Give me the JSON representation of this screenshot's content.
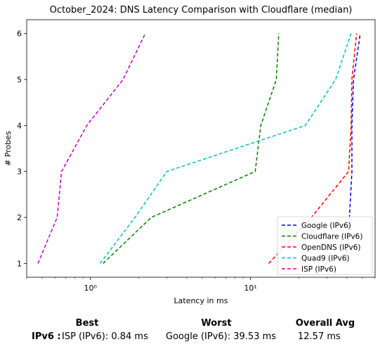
{
  "chart_data": {
    "type": "line",
    "title": "October_2024: DNS Latency Comparison with Cloudflare (median)",
    "xlabel": "Latency in ms",
    "ylabel": "# Probes",
    "xscale": "log",
    "xlim": [
      0.4,
      60
    ],
    "ylim": [
      0.7,
      6.3
    ],
    "xticks": [
      {
        "value": 1,
        "label": "10⁰"
      },
      {
        "value": 10,
        "label": "10¹"
      }
    ],
    "yticks": [
      1,
      2,
      3,
      4,
      5,
      6
    ],
    "grid": false,
    "legend": "lower-right",
    "series": [
      {
        "name": "Google (IPv6)",
        "color": "#0000ff",
        "x": [
          39.5,
          41.5,
          43.0,
          43.0,
          44.0,
          48.5
        ],
        "y": [
          1,
          2,
          3,
          4,
          5,
          6
        ]
      },
      {
        "name": "Cloudflare (IPv6)",
        "color": "#008000",
        "x": [
          1.2,
          2.4,
          10.7,
          11.6,
          14.5,
          15.0
        ],
        "y": [
          1,
          2,
          3,
          4,
          5,
          6
        ]
      },
      {
        "name": "OpenDNS (IPv6)",
        "color": "#ff0000",
        "x": [
          13.0,
          24.0,
          41.0,
          42.5,
          43.0,
          46.0
        ],
        "y": [
          1,
          2,
          3,
          4,
          5,
          6
        ]
      },
      {
        "name": "Quad9 (IPv6)",
        "color": "#00bfbf",
        "x": [
          1.15,
          1.9,
          3.0,
          22.0,
          34.0,
          42.5
        ],
        "y": [
          1,
          2,
          3,
          4,
          5,
          6
        ]
      },
      {
        "name": "ISP (IPv6)",
        "color": "#bf00bf",
        "x": [
          0.47,
          0.62,
          0.66,
          0.95,
          1.6,
          2.2
        ],
        "y": [
          1,
          2,
          3,
          4,
          5,
          6
        ]
      }
    ]
  },
  "summary": {
    "headers": {
      "best": "Best",
      "worst": "Worst",
      "avg": "Overall Avg"
    },
    "row_label": "IPv6 :",
    "best": "ISP (IPv6): 0.84 ms",
    "worst": "Google (IPv6): 39.53 ms",
    "avg": "12.57 ms"
  }
}
